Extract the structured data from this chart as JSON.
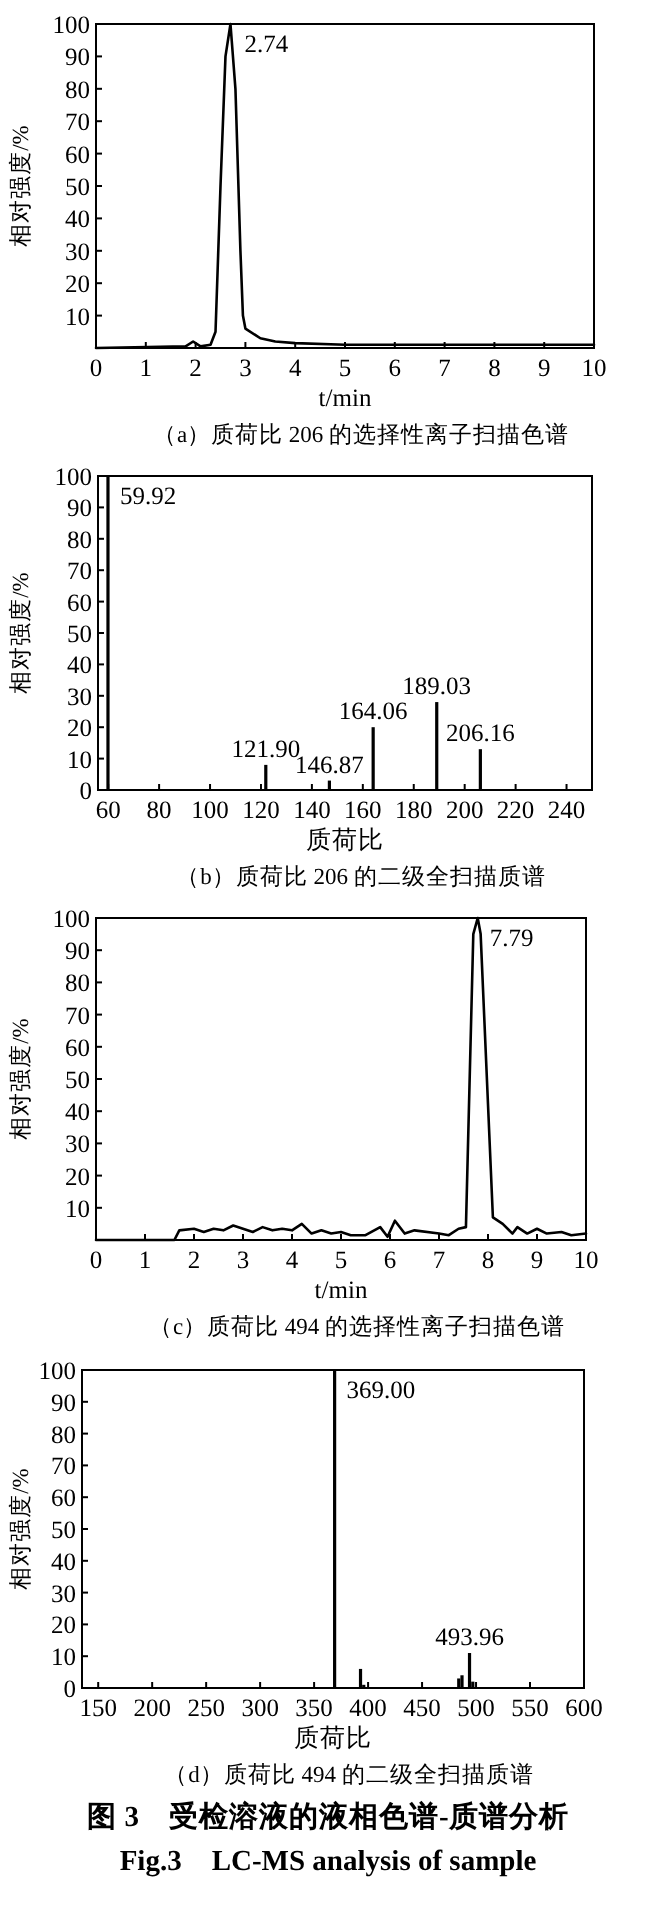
{
  "chart_data": [
    {
      "type": "line",
      "title": "（a）质荷比 206 的选择性离子扫描色谱",
      "xlabel": "t/min",
      "ylabel": "相对强度/%",
      "xlim": [
        0,
        10
      ],
      "ylim": [
        0,
        100
      ],
      "xticks": [
        0,
        1,
        2,
        3,
        4,
        5,
        6,
        7,
        8,
        9,
        10
      ],
      "yticks": [
        10,
        20,
        30,
        40,
        50,
        60,
        70,
        80,
        90,
        100
      ],
      "color": "#000000",
      "x": [
        0,
        1.8,
        1.95,
        2.1,
        2.3,
        2.4,
        2.5,
        2.6,
        2.7,
        2.8,
        2.9,
        2.95,
        3.0,
        3.3,
        3.6,
        4,
        5,
        6,
        7,
        8,
        9,
        10
      ],
      "values": [
        0,
        0.5,
        2,
        0.5,
        1,
        5,
        50,
        90,
        100,
        80,
        30,
        10,
        6,
        3,
        2,
        1.5,
        1,
        1,
        1,
        1,
        1,
        1
      ],
      "annotations": [
        {
          "text": "2.74",
          "x": 2.74,
          "y": 100
        }
      ]
    },
    {
      "type": "bar",
      "title": "（b）质荷比 206 的二级全扫描质谱",
      "xlabel": "质荷比",
      "ylabel": "相对强度/%",
      "xlim": [
        56,
        250
      ],
      "ylim": [
        0,
        100
      ],
      "xticks": [
        60,
        80,
        100,
        120,
        140,
        160,
        180,
        200,
        220,
        240
      ],
      "yticks": [
        0,
        10,
        20,
        30,
        40,
        50,
        60,
        70,
        80,
        90,
        100
      ],
      "color": "#000000",
      "x": [
        59.92,
        121.9,
        146.87,
        164.06,
        189.03,
        206.16
      ],
      "values": [
        100,
        8,
        3,
        20,
        28,
        13
      ],
      "annotations": [
        {
          "text": "59.92",
          "x": 59.92,
          "y": 100
        },
        {
          "text": "121.90",
          "x": 121.9,
          "y": 8
        },
        {
          "text": "146.87",
          "x": 146.87,
          "y": 3
        },
        {
          "text": "164.06",
          "x": 164.06,
          "y": 20
        },
        {
          "text": "189.03",
          "x": 189.03,
          "y": 28
        },
        {
          "text": "206.16",
          "x": 206.16,
          "y": 13
        }
      ]
    },
    {
      "type": "line",
      "title": "（c）质荷比 494 的选择性离子扫描色谱",
      "xlabel": "t/min",
      "ylabel": "相对强度/%",
      "xlim": [
        0,
        10
      ],
      "ylim": [
        0,
        100
      ],
      "xticks": [
        0,
        1,
        2,
        3,
        4,
        5,
        6,
        7,
        8,
        9,
        10
      ],
      "yticks": [
        10,
        20,
        30,
        40,
        50,
        60,
        70,
        80,
        90,
        100
      ],
      "color": "#000000",
      "x": [
        0,
        1.6,
        1.7,
        2,
        2.2,
        2.4,
        2.6,
        2.8,
        3,
        3.2,
        3.4,
        3.6,
        3.8,
        4,
        4.2,
        4.4,
        4.6,
        4.8,
        5,
        5.2,
        5.5,
        5.8,
        5.95,
        6.1,
        6.3,
        6.5,
        7,
        7.2,
        7.4,
        7.55,
        7.7,
        7.79,
        7.85,
        8.1,
        8.3,
        8.5,
        8.6,
        8.8,
        9,
        9.2,
        9.5,
        9.7,
        10
      ],
      "values": [
        0,
        0,
        3,
        3.5,
        2.5,
        3.5,
        3,
        4.5,
        3.5,
        2.5,
        4,
        3,
        3.5,
        3,
        5,
        2,
        3,
        2,
        2.5,
        1.5,
        1.5,
        4,
        1,
        6,
        2,
        3,
        2,
        1.5,
        3.5,
        4,
        95,
        100,
        95,
        7,
        5,
        2,
        4,
        2,
        3.5,
        2,
        2.5,
        1.5,
        2
      ],
      "annotations": [
        {
          "text": "7.79",
          "x": 7.79,
          "y": 100
        }
      ]
    },
    {
      "type": "bar",
      "title": "（d）质荷比 494 的二级全扫描质谱",
      "xlabel": "质荷比",
      "ylabel": "相对强度/%",
      "xlim": [
        135,
        600
      ],
      "ylim": [
        0,
        100
      ],
      "xticks": [
        150,
        200,
        250,
        300,
        350,
        400,
        450,
        500,
        550,
        600
      ],
      "yticks": [
        0,
        10,
        20,
        30,
        40,
        50,
        60,
        70,
        80,
        90,
        100
      ],
      "color": "#000000",
      "x": [
        369,
        393,
        396,
        484,
        487,
        493.96,
        497
      ],
      "values": [
        100,
        6,
        1,
        3,
        4,
        11,
        2
      ],
      "annotations": [
        {
          "text": "369.00",
          "x": 369,
          "y": 100
        },
        {
          "text": "493.96",
          "x": 493.96,
          "y": 11
        },
        "图 3　受检溶液的液相色谱-质谱分析",
        "Fig.3　LC-MS analysis of sample"
      ]
    }
  ]
}
